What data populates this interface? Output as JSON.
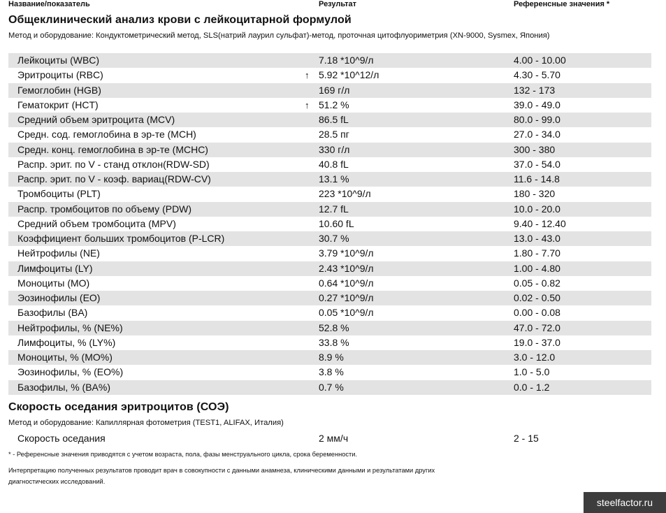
{
  "columns": {
    "name": "Название/показатель",
    "result": "Результат",
    "reference": "Референсные значения *"
  },
  "cbc": {
    "title": "Общеклинический анализ крови с лейкоцитарной формулой",
    "method": "Метод и оборудование:  Кондуктометрический метод, SLS(натрий лаурил сульфат)-метод, проточная цитофлуориметрия (XN-9000, Sysmex, Япония)",
    "rows": [
      {
        "name": "Лейкоциты (WBC)",
        "flag": "",
        "result": "7.18 *10^9/л",
        "ref": "4.00 - 10.00"
      },
      {
        "name": "Эритроциты (RBC)",
        "flag": "↑",
        "result": "5.92 *10^12/л",
        "ref": "4.30 - 5.70"
      },
      {
        "name": "Гемоглобин (HGB)",
        "flag": "",
        "result": "169 г/л",
        "ref": "132 - 173"
      },
      {
        "name": "Гематокрит (HCT)",
        "flag": "↑",
        "result": "51.2 %",
        "ref": "39.0 - 49.0"
      },
      {
        "name": "Средний объем эритроцита (MCV)",
        "flag": "",
        "result": "86.5 fL",
        "ref": "80.0 - 99.0"
      },
      {
        "name": "Средн. сод. гемоглобина в эр-те (MCH)",
        "flag": "",
        "result": "28.5 пг",
        "ref": "27.0 - 34.0"
      },
      {
        "name": "Средн. конц. гемоглобина в эр-те (MCHC)",
        "flag": "",
        "result": "330 г/л",
        "ref": "300 - 380"
      },
      {
        "name": "Распр. эрит. по V - станд отклон(RDW-SD)",
        "flag": "",
        "result": "40.8 fL",
        "ref": "37.0 - 54.0"
      },
      {
        "name": "Распр. эрит. по V - коэф. вариац(RDW-CV)",
        "flag": "",
        "result": "13.1 %",
        "ref": "11.6 - 14.8"
      },
      {
        "name": "Тромбоциты (PLT)",
        "flag": "",
        "result": "223 *10^9/л",
        "ref": "180 - 320"
      },
      {
        "name": "Распр. тромбоцитов по объему (PDW)",
        "flag": "",
        "result": "12.7 fL",
        "ref": "10.0 - 20.0"
      },
      {
        "name": "Средний объем тромбоцита (MPV)",
        "flag": "",
        "result": "10.60 fL",
        "ref": "9.40 - 12.40"
      },
      {
        "name": "Коэффициент больших тромбоцитов (P-LCR)",
        "flag": "",
        "result": "30.7 %",
        "ref": "13.0 - 43.0"
      },
      {
        "name": "Нейтрофилы (NE)",
        "flag": "",
        "result": "3.79 *10^9/л",
        "ref": "1.80 - 7.70"
      },
      {
        "name": "Лимфоциты (LY)",
        "flag": "",
        "result": "2.43 *10^9/л",
        "ref": "1.00 - 4.80"
      },
      {
        "name": "Моноциты (MO)",
        "flag": "",
        "result": "0.64 *10^9/л",
        "ref": "0.05 - 0.82"
      },
      {
        "name": "Эозинофилы (EO)",
        "flag": "",
        "result": "0.27 *10^9/л",
        "ref": "0.02 - 0.50"
      },
      {
        "name": "Базофилы (BA)",
        "flag": "",
        "result": "0.05 *10^9/л",
        "ref": "0.00 - 0.08"
      },
      {
        "name": "Нейтрофилы, % (NE%)",
        "flag": "",
        "result": "52.8 %",
        "ref": "47.0 - 72.0"
      },
      {
        "name": "Лимфоциты, % (LY%)",
        "flag": "",
        "result": "33.8 %",
        "ref": "19.0 - 37.0"
      },
      {
        "name": "Моноциты, % (MO%)",
        "flag": "",
        "result": "8.9 %",
        "ref": "3.0 - 12.0"
      },
      {
        "name": "Эозинофилы, % (EO%)",
        "flag": "",
        "result": "3.8 %",
        "ref": "1.0 - 5.0"
      },
      {
        "name": "Базофилы, % (BA%)",
        "flag": "",
        "result": "0.7 %",
        "ref": "0.0 - 1.2"
      }
    ]
  },
  "esr": {
    "title": "Скорость оседания эритроцитов (СОЭ)",
    "method": "Метод и оборудование:  Капиллярная фотометрия (TEST1, ALIFAX, Италия)",
    "row": {
      "name": "Скорость оседания",
      "result": "2 мм/ч",
      "ref": "2 - 15"
    }
  },
  "footnote": "* - Референсные значения приводятся с учетом возраста, пола, фазы менструального цикла, срока беременности.",
  "interpretation": "Интерпретацию полученных результатов проводит врач в совокупности с данными анамнеза, клиническими данными и результатами других диагностических исследований.",
  "watermark": "steelfactor.ru"
}
